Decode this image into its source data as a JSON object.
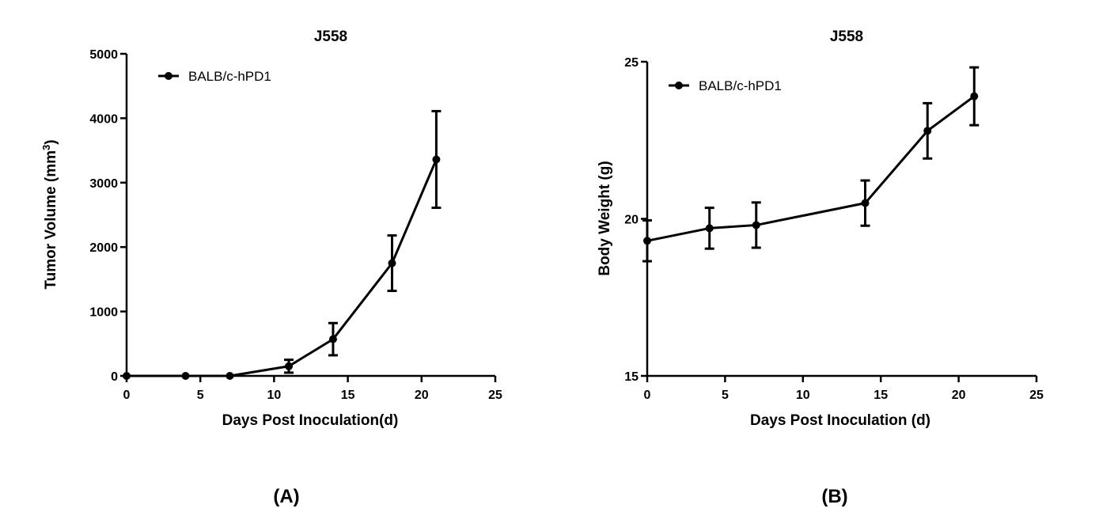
{
  "chart_data": [
    {
      "type": "line",
      "title": "J558",
      "xlabel": "Days Post  Inoculation(d)",
      "ylabel": "Tumor Volume (mm",
      "ylabel_sup": "3",
      "ylabel_close": ")",
      "xlim": [
        0,
        25
      ],
      "ylim": [
        0,
        5000
      ],
      "xticks": [
        0,
        5,
        10,
        15,
        20,
        25
      ],
      "yticks": [
        0,
        1000,
        2000,
        3000,
        4000,
        5000
      ],
      "grid": false,
      "legend_position": "top-left",
      "series": [
        {
          "name": "BALB/c-hPD1",
          "x": [
            0,
            4,
            7,
            11,
            14,
            18,
            21
          ],
          "y": [
            0,
            0,
            0,
            150,
            570,
            1750,
            3360
          ],
          "err": [
            0,
            0,
            0,
            100,
            250,
            430,
            750
          ]
        }
      ],
      "panel_label": "(A)"
    },
    {
      "type": "line",
      "title": "J558",
      "xlabel": "Days Post Inoculation (d)",
      "ylabel": "Body Weight (g)",
      "xlim": [
        0,
        25
      ],
      "ylim": [
        15,
        25
      ],
      "xticks": [
        0,
        5,
        10,
        15,
        20,
        25
      ],
      "yticks": [
        15,
        20,
        25
      ],
      "grid": false,
      "legend_position": "top-left",
      "series": [
        {
          "name": "BALB/c-hPD1",
          "x": [
            0,
            4,
            7,
            14,
            18,
            21
          ],
          "y": [
            19.3,
            19.7,
            19.8,
            20.5,
            22.8,
            23.9
          ],
          "err": [
            0.65,
            0.65,
            0.72,
            0.72,
            0.88,
            0.92
          ]
        }
      ],
      "panel_label": "(B)"
    }
  ]
}
